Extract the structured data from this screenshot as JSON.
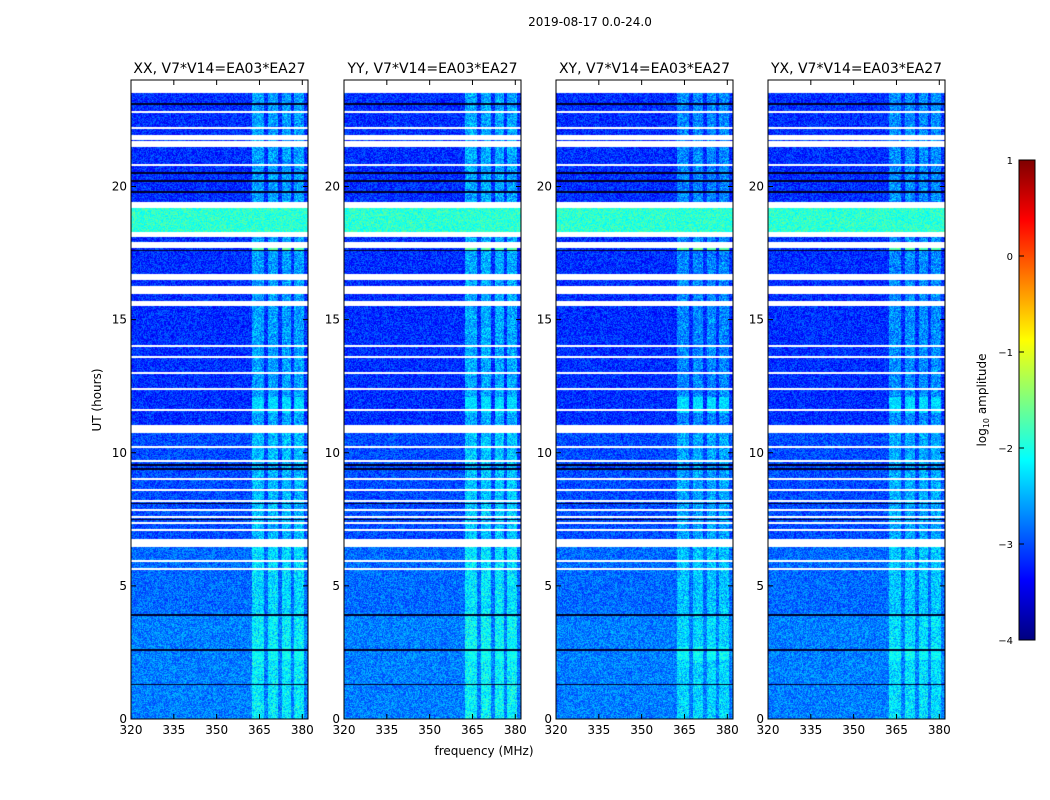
{
  "figure_title": "2019-08-17 0.0-24.0",
  "colors": {
    "jet": [
      "#00007f",
      "#0000ff",
      "#007fff",
      "#00ffff",
      "#7fff7f",
      "#ffff00",
      "#ff7f00",
      "#ff0000",
      "#7f0000"
    ],
    "flag_line": "#ffffff",
    "dark_line": "#000020",
    "frame": "#000000"
  },
  "chart_data": {
    "type": "heatmap",
    "xlabel": "frequency (MHz)",
    "ylabel": "UT (hours)",
    "xlim": [
      320,
      382
    ],
    "ylim": [
      0,
      24
    ],
    "x_ticks": [
      320,
      335,
      350,
      365,
      380
    ],
    "y_ticks": [
      0,
      5,
      10,
      15,
      20
    ],
    "panels": [
      {
        "title": "XX, V7*V14=EA03*EA27",
        "rfi_level": 1.0
      },
      {
        "title": "YY, V7*V14=EA03*EA27",
        "rfi_level": 1.1
      },
      {
        "title": "XY, V7*V14=EA03*EA27",
        "rfi_level": 0.8
      },
      {
        "title": "YX, V7*V14=EA03*EA27",
        "rfi_level": 0.85
      }
    ],
    "rfi_channels_mhz": [
      [
        362.5,
        366.5
      ],
      [
        368,
        371.5
      ],
      [
        373,
        376
      ],
      [
        377,
        380.5
      ]
    ],
    "flagged_hours": [
      6.55,
      6.65,
      10.85,
      10.95,
      15.6,
      16.05,
      16.15,
      16.6,
      17.8,
      18.2,
      19.3,
      21.6,
      21.85
    ],
    "thin_flagged_hours": [
      5.65,
      5.95,
      7.1,
      7.35,
      7.6,
      7.85,
      8.2,
      8.6,
      9.0,
      9.7,
      10.2,
      11.6,
      12.4,
      13.0,
      13.6,
      14.0,
      20.8,
      22.2,
      22.8
    ],
    "dark_hours": [
      1.3,
      2.6,
      3.9,
      7.5,
      8.1,
      9.4,
      9.55,
      16.5,
      16.55,
      17.6,
      19.8,
      20.2,
      20.5,
      23.1
    ],
    "bright_bands": [
      {
        "from": 18.3,
        "to": 19.3,
        "log_amp": -1.9
      },
      {
        "from": 11.5,
        "to": 12.1,
        "log_amp": -2.3,
        "rfi_only": true
      },
      {
        "from": 2.2,
        "to": 2.7,
        "log_amp": -2.1,
        "rfi_only": true
      },
      {
        "from": 17.6,
        "to": 17.9,
        "log_amp": -1.7,
        "rfi_only": true
      }
    ],
    "colorbar": {
      "label_prefix": "log",
      "label_sub": "10",
      "label_suffix": " amplitude",
      "ticks": [
        "1",
        "0",
        "−1",
        "−2",
        "−3",
        "−4"
      ],
      "range": [
        -4,
        1
      ]
    }
  }
}
